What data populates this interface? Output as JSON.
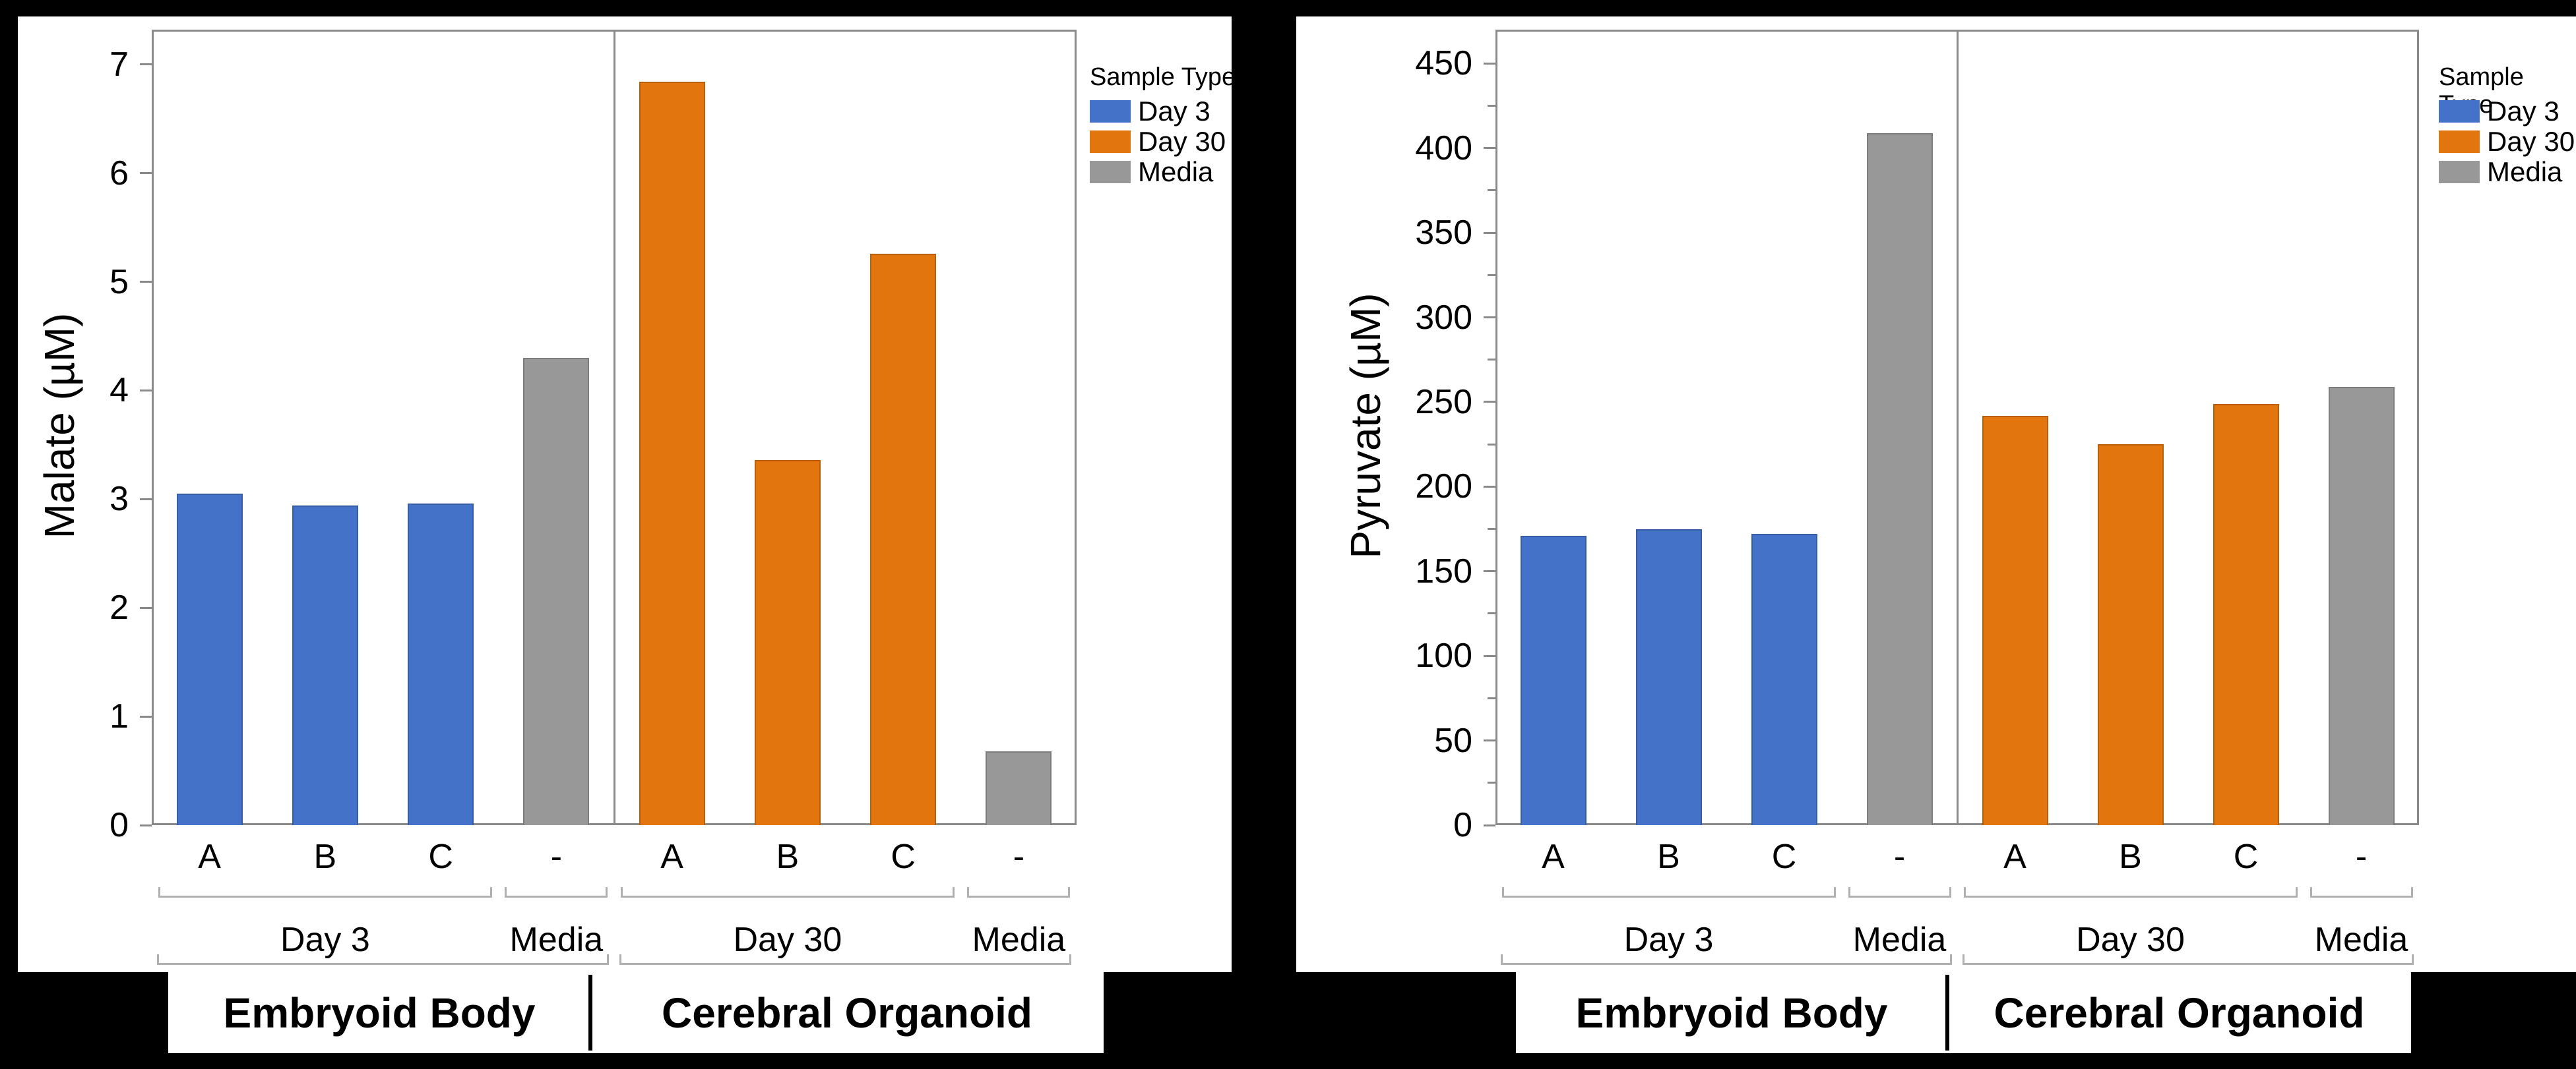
{
  "page": {
    "background": "#000000",
    "panel_color": "#ffffff"
  },
  "colors": {
    "day3": "#4472C8",
    "day30": "#E2750D",
    "media": "#989898",
    "axis_line": "#8A8A8A",
    "bracket": "#B0B0B0",
    "text": "#000000"
  },
  "legend": {
    "title": "Sample Type",
    "items": [
      {
        "label": "Day 3",
        "color_key": "day3"
      },
      {
        "label": "Day 30",
        "color_key": "day30"
      },
      {
        "label": "Media",
        "color_key": "media"
      }
    ]
  },
  "footer_groups": [
    "Embryoid Body",
    "Cerebral Organoid"
  ],
  "chart_data": [
    {
      "type": "bar",
      "ylabel": "Malate (µM)",
      "ylim": [
        0,
        7.32
      ],
      "ytick_step": 1,
      "ytick_max": 7,
      "minor_tick_step": 0,
      "grid": false,
      "legend_position": "right",
      "legend_title": "Sample Type",
      "sections": [
        {
          "label": "Embryoid Body",
          "groups": [
            {
              "label": "Day 3",
              "series": "Day 3",
              "color_key": "day3",
              "bars": [
                {
                  "x": "A",
                  "value": 3.05
                },
                {
                  "x": "B",
                  "value": 2.94
                },
                {
                  "x": "C",
                  "value": 2.96
                }
              ]
            },
            {
              "label": "Media",
              "series": "Media",
              "color_key": "media",
              "bars": [
                {
                  "x": "-",
                  "value": 4.3
                }
              ]
            }
          ]
        },
        {
          "label": "Cerebral Organoid",
          "groups": [
            {
              "label": "Day 30",
              "series": "Day 30",
              "color_key": "day30",
              "bars": [
                {
                  "x": "A",
                  "value": 6.84
                },
                {
                  "x": "B",
                  "value": 3.36
                },
                {
                  "x": "C",
                  "value": 5.26
                }
              ]
            },
            {
              "label": "Media",
              "series": "Media",
              "color_key": "media",
              "bars": [
                {
                  "x": "-",
                  "value": 0.68
                }
              ]
            }
          ]
        }
      ]
    },
    {
      "type": "bar",
      "ylabel": "Pyruvate (µM)",
      "ylim": [
        0,
        470
      ],
      "ytick_step": 50,
      "ytick_max": 450,
      "minor_tick_step": 25,
      "grid": false,
      "legend_position": "right",
      "legend_title": "Sample Type",
      "sections": [
        {
          "label": "Embryoid Body",
          "groups": [
            {
              "label": "Day 3",
              "series": "Day 3",
              "color_key": "day3",
              "bars": [
                {
                  "x": "A",
                  "value": 171
                },
                {
                  "x": "B",
                  "value": 175
                },
                {
                  "x": "C",
                  "value": 172
                }
              ]
            },
            {
              "label": "Media",
              "series": "Media",
              "color_key": "media",
              "bars": [
                {
                  "x": "-",
                  "value": 409
                }
              ]
            }
          ]
        },
        {
          "label": "Cerebral Organoid",
          "groups": [
            {
              "label": "Day 30",
              "series": "Day 30",
              "color_key": "day30",
              "bars": [
                {
                  "x": "A",
                  "value": 242
                },
                {
                  "x": "B",
                  "value": 225
                },
                {
                  "x": "C",
                  "value": 249
                }
              ]
            },
            {
              "label": "Media",
              "series": "Media",
              "color_key": "media",
              "bars": [
                {
                  "x": "-",
                  "value": 259
                }
              ]
            }
          ]
        }
      ]
    }
  ]
}
